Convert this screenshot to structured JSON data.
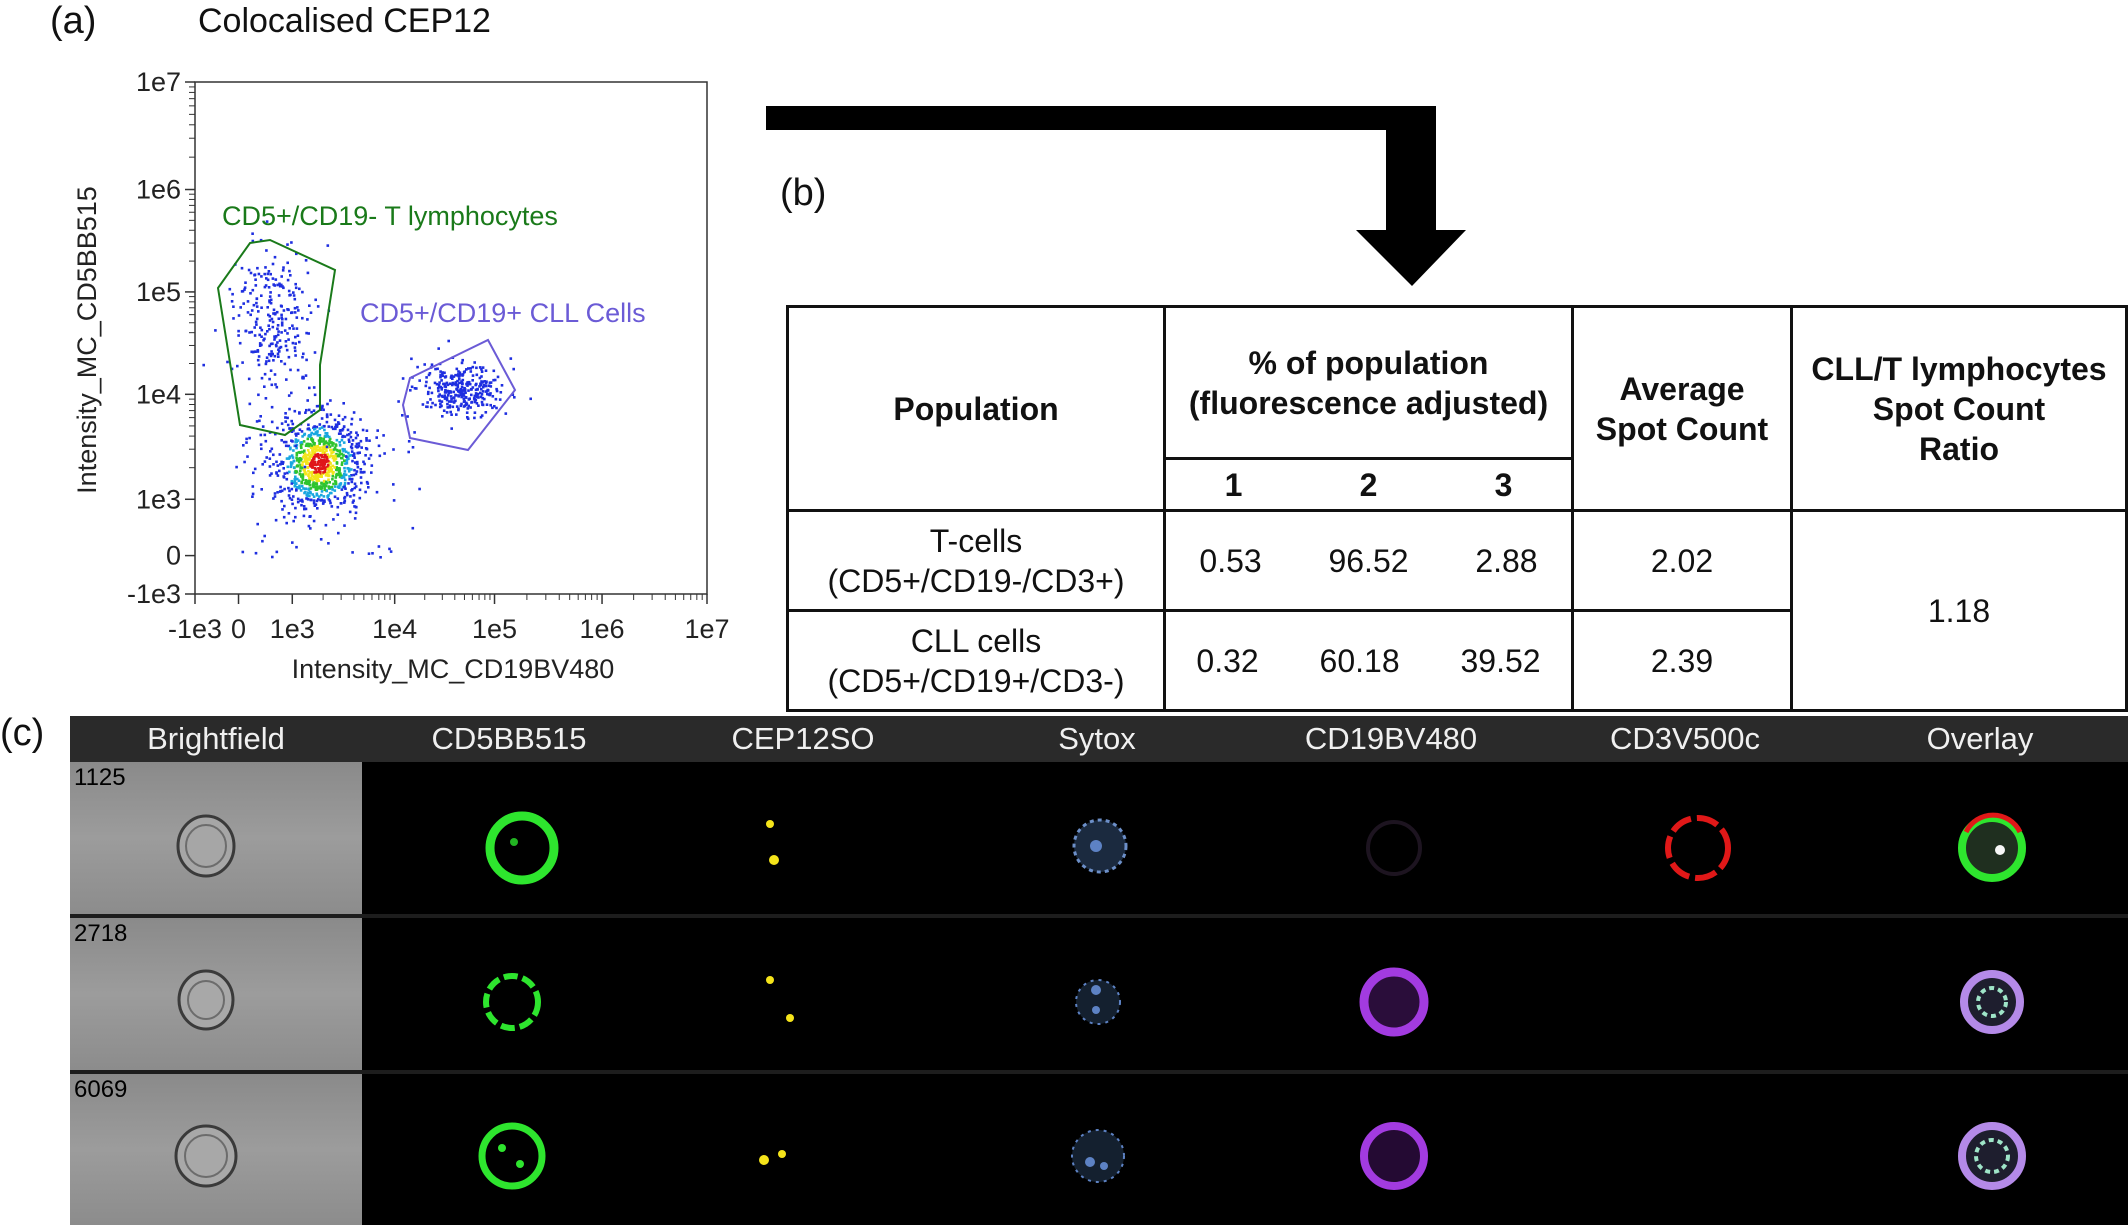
{
  "panel_a": {
    "label": "(a)",
    "title": "Colocalised CEP12",
    "xlabel": "Intensity_MC_CD19BV480",
    "ylabel": "Intensity_MC_CD5BB515",
    "x_ticks": [
      "-1e3",
      "0",
      "1e3",
      "1e4",
      "1e5",
      "1e6",
      "1e7"
    ],
    "y_ticks": [
      "1e7",
      "1e6",
      "1e5",
      "1e4",
      "1e3",
      "0",
      "-1e3"
    ],
    "gate_t_label": "CD5+/CD19- T lymphocytes",
    "gate_cll_label": "CD5+/CD19+ CLL Cells"
  },
  "chart_data": {
    "type": "scatter",
    "title": "Colocalised CEP12",
    "xlabel": "Intensity_MC_CD19BV480",
    "ylabel": "Intensity_MC_CD5BB515",
    "xscale": "biexponential",
    "yscale": "biexponential",
    "xlim": [
      "-1e3",
      "1e7"
    ],
    "ylim": [
      "-1e3",
      "1e7"
    ],
    "grid": false,
    "populations": [
      {
        "name": "CD5+/CD19- T lymphocytes",
        "gate_color": "#1a7a1a",
        "approx_center": {
          "x": 700,
          "y": 40000
        }
      },
      {
        "name": "CD5+/CD19+ CLL Cells",
        "gate_color": "#6b5bd6",
        "approx_center": {
          "x": 50000,
          "y": 12000
        }
      },
      {
        "name": "",
        "approx_center": {
          "x": 3000,
          "y": 2000
        }
      }
    ],
    "point_colors": [
      "#1f2fe0",
      "#19a7e0",
      "#2fc42f",
      "#f2e51c",
      "#e0161a"
    ]
  },
  "arrow": {
    "color": "#000000"
  },
  "panel_b": {
    "label": "(b)",
    "headers": {
      "population": "Population",
      "pct_line1": "% of population",
      "pct_line2": "(fluorescence adjusted)",
      "sub": [
        "1",
        "2",
        "3"
      ],
      "avg_line1": "Average",
      "avg_line2": "Spot Count",
      "ratio_line1": "CLL/T lymphocytes",
      "ratio_line2": "Spot Count",
      "ratio_line3": "Ratio"
    },
    "rows": [
      {
        "name1": "T-cells",
        "name2": "(CD5+/CD19-/CD3+)",
        "v1": "0.53",
        "v2": "96.52",
        "v3": "2.88",
        "avg": "2.02"
      },
      {
        "name1": "CLL cells",
        "name2": "(CD5+/CD19+/CD3-)",
        "v1": "0.32",
        "v2": "60.18",
        "v3": "39.52",
        "avg": "2.39"
      }
    ],
    "ratio": "1.18"
  },
  "panel_c": {
    "label": "(c)",
    "channels": [
      "Brightfield",
      "CD5BB515",
      "CEP12SO",
      "Sytox",
      "CD19BV480",
      "CD3V500c",
      "Overlay"
    ],
    "rows": [
      "1125",
      "2718",
      "6069"
    ]
  }
}
